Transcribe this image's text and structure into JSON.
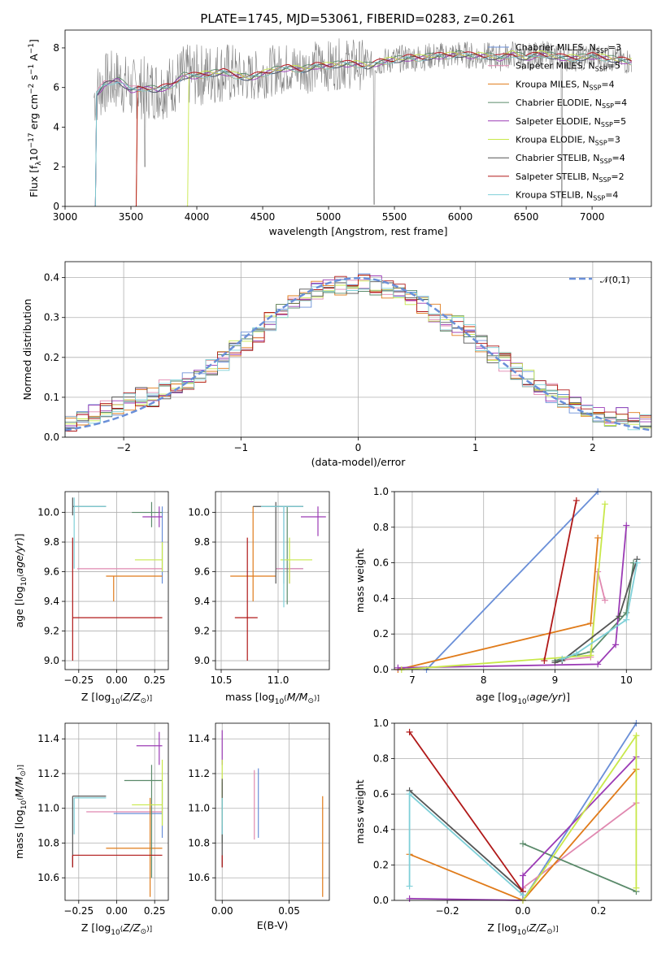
{
  "figure_title": "PLATE=1745, MJD=53061, FIBERID=0283, z=0.261",
  "colors": [
    "#6a8fd8",
    "#f08a3a",
    "#e07b1a",
    "#5a8a6a",
    "#9b3bb5",
    "#c8e84a",
    "#555555",
    "#b01818",
    "#7fd0d8",
    "#e080b0"
  ],
  "series": [
    {
      "name": "Chabrier MILES, N$_{SSP}$=3",
      "label": "Chabrier MILES, N",
      "sub": "SSP",
      "n": "=3",
      "color": "#6a8fd8"
    },
    {
      "name": "Salpeter MILES, N$_{SSP}$=5",
      "label": "Salpeter MILES, N",
      "sub": "SSP",
      "n": "=5",
      "color": "#e088b0"
    },
    {
      "name": "Kroupa MILES, N$_{SSP}$=4",
      "label": "Kroupa MILES, N",
      "sub": "SSP",
      "n": "=4",
      "color": "#e07b1a"
    },
    {
      "name": "Chabrier ELODIE, N$_{SSP}$=4",
      "label": "Chabrier ELODIE, N",
      "sub": "SSP",
      "n": "=4",
      "color": "#5a8a6a"
    },
    {
      "name": "Salpeter ELODIE, N$_{SSP}$=5",
      "label": "Salpeter ELODIE, N",
      "sub": "SSP",
      "n": "=5",
      "color": "#9b3bb5"
    },
    {
      "name": "Kroupa ELODIE, N$_{SSP}$=3",
      "label": "Kroupa ELODIE, N",
      "sub": "SSP",
      "n": "=3",
      "color": "#c8e84a"
    },
    {
      "name": "Chabrier STELIB, N$_{SSP}$=4",
      "label": "Chabrier STELIB, N",
      "sub": "SSP",
      "n": "=4",
      "color": "#555555"
    },
    {
      "name": "Salpeter STELIB, N$_{SSP}$=2",
      "label": "Salpeter STELIB, N",
      "sub": "SSP",
      "n": "=2",
      "color": "#b01818"
    },
    {
      "name": "Kroupa STELIB, N$_{SSP}$=4",
      "label": "Kroupa STELIB, N",
      "sub": "SSP",
      "n": "=4",
      "color": "#7fd0d8"
    }
  ],
  "chart_data": [
    {
      "id": "spectrum",
      "type": "line",
      "xlabel": "wavelength [Angstrom, rest frame]",
      "ylabel": "Flux [f_λ 10^-17 erg cm^-2 s^-1 A^-1]",
      "ylabel_parts": {
        "a": "Flux [f",
        "b": "λ",
        "c": "10",
        "d": "−17",
        "e": " erg cm",
        "f": "−2",
        "g": " s",
        "h": "−1",
        "i": " A",
        "j": "−1",
        "k": "]"
      },
      "xlim": [
        3000,
        7450
      ],
      "ylim": [
        0,
        8.9
      ],
      "xticks": [
        3000,
        3500,
        4000,
        4500,
        5000,
        5500,
        6000,
        6500,
        7000
      ],
      "yticks": [
        0,
        2,
        4,
        6,
        8
      ],
      "data_x": [
        3220,
        3300,
        3400,
        3500,
        3600,
        3700,
        3800,
        3900,
        4000,
        4100,
        4200,
        4300,
        4400,
        4500,
        4600,
        4700,
        4800,
        4900,
        5000,
        5100,
        5200,
        5300,
        5400,
        5500,
        5600,
        5700,
        5800,
        5900,
        6000,
        6100,
        6200,
        6300,
        6400,
        6500,
        6600,
        6700,
        6800,
        6900,
        7000,
        7100,
        7200,
        7300
      ],
      "data_y": [
        5.5,
        6.2,
        6.4,
        5.9,
        6.0,
        5.9,
        6.1,
        6.6,
        6.6,
        6.7,
        6.8,
        6.6,
        6.5,
        6.7,
        6.9,
        7.0,
        6.9,
        7.1,
        7.1,
        7.2,
        7.2,
        7.1,
        7.3,
        7.4,
        7.5,
        7.5,
        7.6,
        7.6,
        7.7,
        7.6,
        7.6,
        7.5,
        7.7,
        7.5,
        7.7,
        7.6,
        7.5,
        7.5,
        7.6,
        7.5,
        7.4,
        7.3
      ]
    },
    {
      "id": "residuals",
      "type": "histogram",
      "xlabel": "(data-model)/error",
      "ylabel": "Normed distribution",
      "xlim": [
        -2.5,
        2.5
      ],
      "ylim": [
        0,
        0.44
      ],
      "xticks": [
        -2,
        -1,
        0,
        1,
        2
      ],
      "yticks": [
        0.0,
        0.1,
        0.2,
        0.3,
        0.4
      ],
      "legend": "𝒩(0,1)",
      "bins": [
        -2.5,
        -2.4,
        -2.3,
        -2.2,
        -2.1,
        -2.0,
        -1.9,
        -1.8,
        -1.7,
        -1.6,
        -1.5,
        -1.4,
        -1.3,
        -1.2,
        -1.1,
        -1.0,
        -0.9,
        -0.8,
        -0.7,
        -0.6,
        -0.5,
        -0.4,
        -0.3,
        -0.2,
        -0.1,
        0.0,
        0.1,
        0.2,
        0.3,
        0.4,
        0.5,
        0.6,
        0.7,
        0.8,
        0.9,
        1.0,
        1.1,
        1.2,
        1.3,
        1.4,
        1.5,
        1.6,
        1.7,
        1.8,
        1.9,
        2.0,
        2.1,
        2.2,
        2.3,
        2.4
      ],
      "hist": [
        0.04,
        0.05,
        0.06,
        0.07,
        0.08,
        0.09,
        0.1,
        0.1,
        0.12,
        0.13,
        0.14,
        0.16,
        0.18,
        0.19,
        0.22,
        0.24,
        0.26,
        0.29,
        0.31,
        0.33,
        0.35,
        0.37,
        0.37,
        0.38,
        0.38,
        0.39,
        0.38,
        0.37,
        0.36,
        0.35,
        0.33,
        0.31,
        0.29,
        0.28,
        0.26,
        0.23,
        0.21,
        0.19,
        0.17,
        0.15,
        0.13,
        0.11,
        0.1,
        0.08,
        0.07,
        0.06,
        0.05,
        0.05,
        0.04,
        0.04
      ]
    },
    {
      "id": "age_vs_Z",
      "type": "errorbar",
      "xlabel": "Z [log10(Z/Z⊙)]",
      "ylabel": "age  [log10(age/yr)]",
      "xlim": [
        -0.34,
        0.34
      ],
      "ylim": [
        8.94,
        10.14
      ],
      "xticks": [
        -0.25,
        0.0,
        0.25
      ],
      "yticks": [
        9.0,
        9.2,
        9.4,
        9.6,
        9.8,
        10.0
      ],
      "points": [
        {
          "x": 0.3,
          "y": 9.62,
          "xe": [
            0.3,
            0.3
          ],
          "ye": [
            9.52,
            10.04
          ],
          "c": "#6a8fd8"
        },
        {
          "x": -0.1,
          "y": 9.62,
          "xe": [
            -0.26,
            0.3
          ],
          "ye": [
            9.62,
            9.62
          ],
          "c": "#e088b0"
        },
        {
          "x": -0.02,
          "y": 9.57,
          "xe": [
            -0.07,
            0.3
          ],
          "ye": [
            9.4,
            9.57
          ],
          "c": "#e07b1a"
        },
        {
          "x": 0.23,
          "y": 10.0,
          "xe": [
            0.1,
            0.3
          ],
          "ye": [
            9.9,
            10.07
          ],
          "c": "#5a8a6a"
        },
        {
          "x": 0.28,
          "y": 9.97,
          "xe": [
            0.17,
            0.3
          ],
          "ye": [
            9.9,
            10.04
          ],
          "c": "#9b3bb5"
        },
        {
          "x": 0.3,
          "y": 9.68,
          "xe": [
            0.12,
            0.3
          ],
          "ye": [
            9.6,
            9.8
          ],
          "c": "#c8e84a"
        },
        {
          "x": -0.29,
          "y": 10.04,
          "xe": [
            -0.29,
            -0.07
          ],
          "ye": [
            9.98,
            10.1
          ],
          "c": "#555555"
        },
        {
          "x": -0.29,
          "y": 9.29,
          "xe": [
            -0.29,
            0.3
          ],
          "ye": [
            9.0,
            9.83
          ],
          "c": "#b01818"
        },
        {
          "x": -0.28,
          "y": 10.04,
          "xe": [
            -0.28,
            -0.07
          ],
          "ye": [
            9.62,
            10.1
          ],
          "c": "#7fd0d8"
        }
      ]
    },
    {
      "id": "age_vs_mass",
      "type": "errorbar",
      "xlabel": "mass [log10(M/M⊙)]",
      "ylabel": "",
      "xlim": [
        10.45,
        11.45
      ],
      "ylim": [
        8.94,
        10.14
      ],
      "xticks": [
        10.5,
        11.0
      ],
      "yticks": [
        9.0,
        9.2,
        9.4,
        9.6,
        9.8,
        10.0
      ],
      "points": [
        {
          "x": 11.05,
          "y": 9.62,
          "xe": [
            10.98,
            11.22
          ],
          "ye": [
            9.52,
            10.04
          ],
          "c": "#6a8fd8"
        },
        {
          "x": 11.1,
          "y": 9.62,
          "xe": [
            10.98,
            11.22
          ],
          "ye": [
            9.52,
            9.66
          ],
          "c": "#e088b0"
        },
        {
          "x": 10.78,
          "y": 9.57,
          "xe": [
            10.58,
            10.98
          ],
          "ye": [
            9.4,
            10.04
          ],
          "c": "#e07b1a"
        },
        {
          "x": 11.08,
          "y": 10.04,
          "xe": [
            10.98,
            11.22
          ],
          "ye": [
            9.38,
            10.04
          ],
          "c": "#5a8a6a"
        },
        {
          "x": 11.35,
          "y": 9.97,
          "xe": [
            11.2,
            11.42
          ],
          "ye": [
            9.84,
            10.04
          ],
          "c": "#9b3bb5"
        },
        {
          "x": 11.1,
          "y": 9.68,
          "xe": [
            11.02,
            11.3
          ],
          "ye": [
            9.52,
            9.83
          ],
          "c": "#c8e84a"
        },
        {
          "x": 10.98,
          "y": 10.04,
          "xe": [
            10.78,
            11.22
          ],
          "ye": [
            9.52,
            10.07
          ],
          "c": "#555555"
        },
        {
          "x": 10.73,
          "y": 9.29,
          "xe": [
            10.62,
            10.82
          ],
          "ye": [
            9.0,
            9.83
          ],
          "c": "#b01818"
        },
        {
          "x": 11.05,
          "y": 10.04,
          "xe": [
            10.85,
            11.22
          ],
          "ye": [
            9.36,
            10.04
          ],
          "c": "#7fd0d8"
        }
      ]
    },
    {
      "id": "weight_vs_age",
      "type": "line",
      "xlabel": "age  [log10(age/yr)]",
      "ylabel": "mass weight",
      "xlim": [
        6.75,
        10.35
      ],
      "ylim": [
        0,
        1.0
      ],
      "xticks": [
        7,
        8,
        9,
        10
      ],
      "yticks": [
        0.0,
        0.2,
        0.4,
        0.6,
        0.8,
        1.0
      ],
      "series": [
        {
          "c": "#6a8fd8",
          "x": [
            7.2,
            9.6
          ],
          "y": [
            0.0,
            1.0
          ]
        },
        {
          "c": "#e088b0",
          "x": [
            9.0,
            9.5,
            9.6,
            9.7
          ],
          "y": [
            0.05,
            0.07,
            0.55,
            0.39
          ]
        },
        {
          "c": "#e07b1a",
          "x": [
            6.8,
            9.5,
            9.6
          ],
          "y": [
            0.0,
            0.26,
            0.74
          ]
        },
        {
          "c": "#5a8a6a",
          "x": [
            9.0,
            9.5,
            10.0,
            10.1
          ],
          "y": [
            0.05,
            0.1,
            0.32,
            0.6
          ]
        },
        {
          "c": "#9b3bb5",
          "x": [
            6.8,
            9.6,
            9.85,
            10.0
          ],
          "y": [
            0.01,
            0.03,
            0.14,
            0.81
          ]
        },
        {
          "c": "#c8e84a",
          "x": [
            6.85,
            9.5,
            9.7
          ],
          "y": [
            0.0,
            0.08,
            0.93
          ]
        },
        {
          "c": "#555555",
          "x": [
            9.0,
            9.1,
            9.9,
            10.15
          ],
          "y": [
            0.04,
            0.05,
            0.3,
            0.62
          ]
        },
        {
          "c": "#b01818",
          "x": [
            8.85,
            9.3
          ],
          "y": [
            0.05,
            0.95
          ]
        },
        {
          "c": "#7fd0d8",
          "x": [
            9.1,
            9.3,
            10.0,
            10.15
          ],
          "y": [
            0.06,
            0.09,
            0.28,
            0.6
          ]
        }
      ]
    },
    {
      "id": "mass_vs_Z",
      "type": "errorbar",
      "xlabel": "Z [log10(Z/Z⊙)]",
      "ylabel": "mass [log10(M/M⊙)]",
      "xlim": [
        -0.34,
        0.34
      ],
      "ylim": [
        10.47,
        11.49
      ],
      "xticks": [
        -0.25,
        0.0,
        0.25
      ],
      "yticks": [
        10.6,
        10.8,
        11.0,
        11.2,
        11.4
      ],
      "points": [
        {
          "x": 0.3,
          "y": 10.97,
          "xe": [
            -0.02,
            0.3
          ],
          "ye": [
            10.83,
            11.15
          ],
          "c": "#6a8fd8"
        },
        {
          "x": 0.08,
          "y": 10.98,
          "xe": [
            -0.2,
            0.3
          ],
          "ye": [
            10.98,
            10.98
          ],
          "c": "#e088b0"
        },
        {
          "x": 0.22,
          "y": 10.77,
          "xe": [
            -0.07,
            0.3
          ],
          "ye": [
            10.49,
            11.06
          ],
          "c": "#e07b1a"
        },
        {
          "x": 0.23,
          "y": 11.16,
          "xe": [
            0.05,
            0.3
          ],
          "ye": [
            10.6,
            11.25
          ],
          "c": "#5a8a6a"
        },
        {
          "x": 0.28,
          "y": 11.36,
          "xe": [
            0.13,
            0.3
          ],
          "ye": [
            11.25,
            11.44
          ],
          "c": "#9b3bb5"
        },
        {
          "x": 0.3,
          "y": 11.02,
          "xe": [
            0.1,
            0.3
          ],
          "ye": [
            10.9,
            11.28
          ],
          "c": "#c8e84a"
        },
        {
          "x": -0.29,
          "y": 11.07,
          "xe": [
            -0.29,
            -0.07
          ],
          "ye": [
            10.66,
            11.07
          ],
          "c": "#555555"
        },
        {
          "x": -0.29,
          "y": 10.73,
          "xe": [
            -0.29,
            0.3
          ],
          "ye": [
            10.66,
            10.73
          ],
          "c": "#b01818"
        },
        {
          "x": -0.28,
          "y": 11.06,
          "xe": [
            -0.28,
            -0.07
          ],
          "ye": [
            10.85,
            11.06
          ],
          "c": "#7fd0d8"
        }
      ]
    },
    {
      "id": "mass_vs_EBV",
      "type": "errorbar",
      "xlabel": "E(B-V)",
      "ylabel": "",
      "xlim": [
        -0.005,
        0.08
      ],
      "ylim": [
        10.47,
        11.49
      ],
      "xticks": [
        0.0,
        0.05
      ],
      "yticks": [
        10.6,
        10.8,
        11.0,
        11.2,
        11.4
      ],
      "points": [
        {
          "x": 0.027,
          "ye": [
            10.83,
            11.23
          ],
          "c": "#6a8fd8"
        },
        {
          "x": 0.024,
          "ye": [
            10.82,
            11.22
          ],
          "c": "#e088b0"
        },
        {
          "x": 0.075,
          "ye": [
            10.49,
            11.07
          ],
          "c": "#e07b1a"
        },
        {
          "x": 0.0,
          "ye": [
            10.8,
            11.15
          ],
          "c": "#5a8a6a"
        },
        {
          "x": 0.0,
          "ye": [
            11.25,
            11.45
          ],
          "c": "#9b3bb5"
        },
        {
          "x": 0.0,
          "ye": [
            10.9,
            11.28
          ],
          "c": "#c8e84a"
        },
        {
          "x": 0.0,
          "ye": [
            10.66,
            11.17
          ],
          "c": "#555555"
        },
        {
          "x": 0.0,
          "ye": [
            10.66,
            10.73
          ],
          "c": "#b01818"
        },
        {
          "x": 0.0,
          "ye": [
            10.85,
            11.06
          ],
          "c": "#7fd0d8"
        }
      ]
    },
    {
      "id": "weight_vs_Z",
      "type": "line",
      "xlabel": "Z [log10(Z/Z⊙)]",
      "ylabel": "mass weight",
      "xlim": [
        -0.34,
        0.34
      ],
      "ylim": [
        0,
        1.0
      ],
      "xticks": [
        -0.2,
        0.0,
        0.2
      ],
      "yticks": [
        0.0,
        0.2,
        0.4,
        0.6,
        0.8,
        1.0
      ],
      "series": [
        {
          "c": "#6a8fd8",
          "x": [
            0.0,
            0.3
          ],
          "y": [
            0.0,
            1.0
          ]
        },
        {
          "c": "#e088b0",
          "x": [
            0.0,
            0.3
          ],
          "y": [
            0.07,
            0.55
          ]
        },
        {
          "c": "#e07b1a",
          "x": [
            -0.3,
            0.0,
            0.3
          ],
          "y": [
            0.26,
            0.0,
            0.74
          ]
        },
        {
          "c": "#5a8a6a",
          "x": [
            0.0,
            0.3
          ],
          "y": [
            0.32,
            0.05
          ]
        },
        {
          "c": "#9b3bb5",
          "x": [
            -0.3,
            0.0,
            0.0,
            0.3
          ],
          "y": [
            0.01,
            0.0,
            0.14,
            0.81
          ]
        },
        {
          "c": "#c8e84a",
          "x": [
            0.0,
            0.3,
            0.3
          ],
          "y": [
            0.0,
            0.93,
            0.07
          ]
        },
        {
          "c": "#555555",
          "x": [
            -0.3,
            0.0
          ],
          "y": [
            0.62,
            0.05
          ]
        },
        {
          "c": "#b01818",
          "x": [
            -0.3,
            0.0
          ],
          "y": [
            0.95,
            0.05
          ]
        },
        {
          "c": "#7fd0d8",
          "x": [
            -0.3,
            -0.3,
            0.0
          ],
          "y": [
            0.08,
            0.6,
            0.03
          ]
        }
      ]
    }
  ]
}
